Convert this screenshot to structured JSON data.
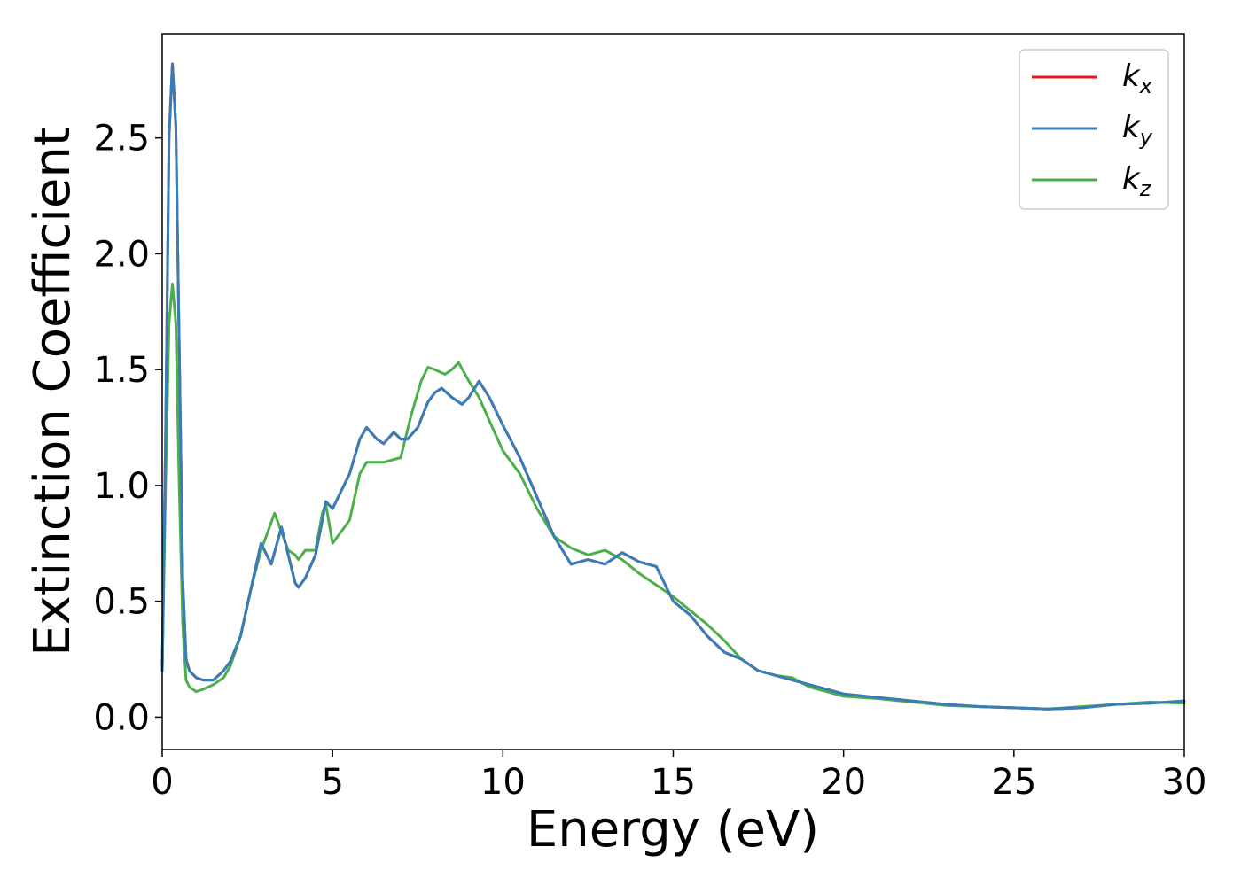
{
  "chart_data": {
    "type": "line",
    "xlabel": "Energy (eV)",
    "ylabel": "Extinction Coefficient",
    "xlim": [
      0,
      30
    ],
    "ylim": [
      -0.14,
      2.95
    ],
    "xticks": [
      "0",
      "5",
      "10",
      "15",
      "20",
      "25",
      "30"
    ],
    "yticks": [
      "0.0",
      "0.5",
      "1.0",
      "1.5",
      "2.0",
      "2.5"
    ],
    "grid": false,
    "legend_position": "top-right",
    "series": [
      {
        "name": "k_x",
        "label_base": "k",
        "label_sub": "x",
        "color": "#e41a1c",
        "x": [
          0,
          0.1,
          0.2,
          0.3,
          0.4,
          0.5,
          0.6,
          0.7,
          0.8,
          1.0,
          1.2,
          1.5,
          1.8,
          2.0,
          2.3,
          2.6,
          2.9,
          3.0,
          3.2,
          3.5,
          3.7,
          3.9,
          4.0,
          4.2,
          4.5,
          4.7,
          4.8,
          5.0,
          5.5,
          5.8,
          6.0,
          6.3,
          6.5,
          6.8,
          7.0,
          7.2,
          7.5,
          7.8,
          8.0,
          8.2,
          8.5,
          8.8,
          9.0,
          9.3,
          9.6,
          10.0,
          10.5,
          11.0,
          11.5,
          12.0,
          12.5,
          13.0,
          13.5,
          14.0,
          14.5,
          15.0,
          15.5,
          16.0,
          16.5,
          17.0,
          17.5,
          18.0,
          18.5,
          19.0,
          19.5,
          20.0,
          21.0,
          22.0,
          23.0,
          24.0,
          25.0,
          26.0,
          27.0,
          28.0,
          29.0,
          30.0
        ],
        "values": [
          0.2,
          1.2,
          2.5,
          2.82,
          2.55,
          1.6,
          0.6,
          0.25,
          0.2,
          0.17,
          0.16,
          0.16,
          0.2,
          0.24,
          0.35,
          0.55,
          0.75,
          0.72,
          0.66,
          0.82,
          0.7,
          0.58,
          0.56,
          0.6,
          0.7,
          0.85,
          0.93,
          0.9,
          1.05,
          1.2,
          1.25,
          1.2,
          1.18,
          1.23,
          1.2,
          1.2,
          1.25,
          1.36,
          1.4,
          1.42,
          1.38,
          1.35,
          1.38,
          1.45,
          1.38,
          1.26,
          1.12,
          0.95,
          0.78,
          0.66,
          0.68,
          0.66,
          0.71,
          0.67,
          0.65,
          0.5,
          0.44,
          0.35,
          0.28,
          0.25,
          0.2,
          0.18,
          0.16,
          0.14,
          0.12,
          0.1,
          0.085,
          0.07,
          0.055,
          0.045,
          0.04,
          0.035,
          0.04,
          0.055,
          0.06,
          0.07
        ]
      },
      {
        "name": "k_y",
        "label_base": "k",
        "label_sub": "y",
        "color": "#377eb8",
        "x": [
          0,
          0.1,
          0.2,
          0.3,
          0.4,
          0.5,
          0.6,
          0.7,
          0.8,
          1.0,
          1.2,
          1.5,
          1.8,
          2.0,
          2.3,
          2.6,
          2.9,
          3.0,
          3.2,
          3.5,
          3.7,
          3.9,
          4.0,
          4.2,
          4.5,
          4.7,
          4.8,
          5.0,
          5.5,
          5.8,
          6.0,
          6.3,
          6.5,
          6.8,
          7.0,
          7.2,
          7.5,
          7.8,
          8.0,
          8.2,
          8.5,
          8.8,
          9.0,
          9.3,
          9.6,
          10.0,
          10.5,
          11.0,
          11.5,
          12.0,
          12.5,
          13.0,
          13.5,
          14.0,
          14.5,
          15.0,
          15.5,
          16.0,
          16.5,
          17.0,
          17.5,
          18.0,
          18.5,
          19.0,
          19.5,
          20.0,
          21.0,
          22.0,
          23.0,
          24.0,
          25.0,
          26.0,
          27.0,
          28.0,
          29.0,
          30.0
        ],
        "values": [
          0.2,
          1.2,
          2.5,
          2.82,
          2.55,
          1.6,
          0.6,
          0.25,
          0.2,
          0.17,
          0.16,
          0.16,
          0.2,
          0.24,
          0.35,
          0.55,
          0.75,
          0.72,
          0.66,
          0.82,
          0.7,
          0.58,
          0.56,
          0.6,
          0.7,
          0.85,
          0.93,
          0.9,
          1.05,
          1.2,
          1.25,
          1.2,
          1.18,
          1.23,
          1.2,
          1.2,
          1.25,
          1.36,
          1.4,
          1.42,
          1.38,
          1.35,
          1.38,
          1.45,
          1.38,
          1.26,
          1.12,
          0.95,
          0.78,
          0.66,
          0.68,
          0.66,
          0.71,
          0.67,
          0.65,
          0.5,
          0.44,
          0.35,
          0.28,
          0.25,
          0.2,
          0.18,
          0.16,
          0.14,
          0.12,
          0.1,
          0.085,
          0.07,
          0.055,
          0.045,
          0.04,
          0.035,
          0.04,
          0.055,
          0.06,
          0.07
        ]
      },
      {
        "name": "k_z",
        "label_base": "k",
        "label_sub": "z",
        "color": "#4daf4a",
        "x": [
          0,
          0.1,
          0.2,
          0.3,
          0.4,
          0.5,
          0.6,
          0.7,
          0.8,
          1.0,
          1.2,
          1.5,
          1.8,
          2.0,
          2.3,
          2.6,
          2.9,
          3.1,
          3.3,
          3.5,
          3.7,
          3.9,
          4.0,
          4.2,
          4.5,
          4.7,
          4.8,
          5.0,
          5.5,
          5.8,
          6.0,
          6.3,
          6.5,
          7.0,
          7.3,
          7.6,
          7.8,
          8.0,
          8.3,
          8.5,
          8.7,
          9.0,
          9.3,
          9.6,
          10.0,
          10.5,
          11.0,
          11.5,
          12.0,
          12.5,
          13.0,
          13.5,
          14.0,
          14.5,
          15.0,
          15.5,
          16.0,
          16.5,
          17.0,
          17.5,
          18.0,
          18.5,
          19.0,
          19.5,
          20.0,
          21.0,
          22.0,
          23.0,
          24.0,
          25.0,
          26.0,
          27.0,
          28.0,
          29.0,
          30.0
        ],
        "values": [
          0.2,
          1.0,
          1.7,
          1.87,
          1.7,
          1.0,
          0.4,
          0.16,
          0.13,
          0.11,
          0.12,
          0.14,
          0.17,
          0.22,
          0.35,
          0.55,
          0.72,
          0.8,
          0.88,
          0.8,
          0.72,
          0.7,
          0.68,
          0.72,
          0.72,
          0.88,
          0.92,
          0.75,
          0.85,
          1.05,
          1.1,
          1.1,
          1.1,
          1.12,
          1.3,
          1.45,
          1.51,
          1.5,
          1.48,
          1.5,
          1.53,
          1.45,
          1.38,
          1.28,
          1.15,
          1.05,
          0.9,
          0.78,
          0.73,
          0.7,
          0.72,
          0.68,
          0.62,
          0.57,
          0.52,
          0.46,
          0.4,
          0.33,
          0.25,
          0.2,
          0.18,
          0.17,
          0.13,
          0.11,
          0.09,
          0.08,
          0.065,
          0.05,
          0.045,
          0.04,
          0.035,
          0.045,
          0.055,
          0.065,
          0.06
        ]
      }
    ]
  }
}
